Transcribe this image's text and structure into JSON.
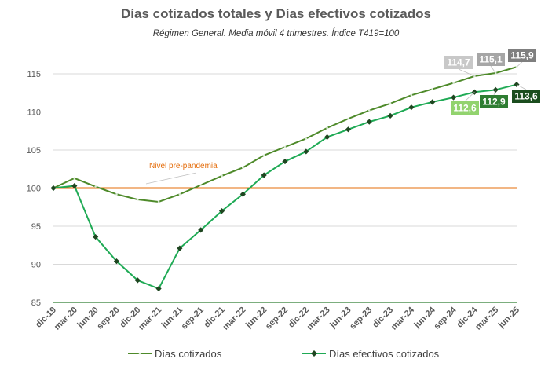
{
  "colors": {
    "dias_cotizados": "#4e8a2a",
    "dias_efectivos": "#1faa55",
    "reference": "#e46c0a",
    "axis": "#2e7d32",
    "grid": "#d9d9d9"
  },
  "chart_data": {
    "type": "line",
    "title": "Días cotizados totales y Días efectivos cotizados",
    "subtitle": "Régimen General. Media móvil 4 trimestres. Índice T419=100",
    "categories": [
      "dic-19",
      "mar-20",
      "jun-20",
      "sep-20",
      "dic-20",
      "mar-21",
      "jun-21",
      "sep-21",
      "dic-21",
      "mar-22",
      "jun-22",
      "sep-22",
      "dic-22",
      "mar-23",
      "jun-23",
      "sep-23",
      "dic-23",
      "mar-24",
      "jun-24",
      "sep-24",
      "dic-24",
      "mar-25",
      "jun-25"
    ],
    "ylim": [
      85,
      117
    ],
    "yticks": [
      85,
      90,
      95,
      100,
      105,
      110,
      115
    ],
    "grid": true,
    "legend_position": "bottom",
    "series": [
      {
        "name": "Días cotizados",
        "values": [
          100,
          101.3,
          100.2,
          99.2,
          98.5,
          98.2,
          99.2,
          100.4,
          101.6,
          102.7,
          104.3,
          105.4,
          106.5,
          107.9,
          109.1,
          110.2,
          111.1,
          112.2,
          113.0,
          113.8,
          114.7,
          115.1,
          115.9
        ],
        "highlighted_labels": [
          {
            "index": 20,
            "text": "114,7",
            "bg": "#c8c8c8"
          },
          {
            "index": 21,
            "text": "115,1",
            "bg": "#a6a6a6"
          },
          {
            "index": 22,
            "text": "115,9",
            "bg": "#7f7f7f"
          }
        ]
      },
      {
        "name": "Días efectivos cotizados",
        "values": [
          100,
          100.3,
          93.6,
          90.4,
          87.9,
          86.8,
          92.1,
          94.5,
          97.0,
          99.2,
          101.7,
          103.5,
          104.8,
          106.7,
          107.7,
          108.7,
          109.5,
          110.6,
          111.3,
          111.9,
          112.6,
          112.9,
          113.6
        ],
        "highlighted_labels": [
          {
            "index": 20,
            "text": "112,6",
            "bg": "#92d36e"
          },
          {
            "index": 21,
            "text": "112,9",
            "bg": "#2e7d32"
          },
          {
            "index": 22,
            "text": "113,6",
            "bg": "#1b4d1e"
          }
        ]
      }
    ],
    "reference_line": {
      "value": 100,
      "label": "Nivel pre-pandemia"
    }
  }
}
